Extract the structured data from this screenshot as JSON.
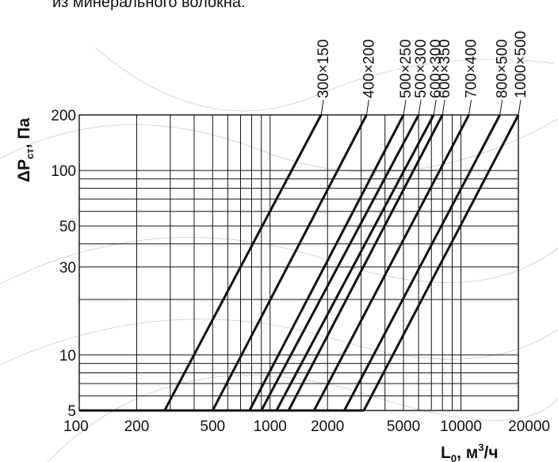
{
  "caption": "из минерального волокна.",
  "chart_data": {
    "type": "line",
    "x_scale": "log",
    "y_scale": "log",
    "xlim": [
      100,
      20000
    ],
    "ylim": [
      5,
      200
    ],
    "grid": true,
    "xlabel": {
      "main": "L",
      "sub": "0",
      "rest": ", м",
      "sup": "3",
      "tail": "/ч"
    },
    "ylabel": {
      "pre": "ΔP",
      "sub": "ст",
      "rest": ", Па"
    },
    "x_ticks": [
      {
        "value": 100,
        "label": "100"
      },
      {
        "value": 200,
        "label": "200"
      },
      {
        "value": 500,
        "label": "500"
      },
      {
        "value": 1000,
        "label": "1000"
      },
      {
        "value": 2000,
        "label": "2000"
      },
      {
        "value": 5000,
        "label": "5000"
      },
      {
        "value": 10000,
        "label": "10000"
      },
      {
        "value": 20000,
        "label": "20000"
      }
    ],
    "y_ticks": [
      {
        "value": 5,
        "label": "5"
      },
      {
        "value": 10,
        "label": "10"
      },
      {
        "value": 30,
        "label": "30"
      },
      {
        "value": 50,
        "label": "50"
      },
      {
        "value": 100,
        "label": "100"
      },
      {
        "value": 200,
        "label": "200"
      }
    ],
    "x_grid": [
      200,
      300,
      400,
      500,
      600,
      700,
      800,
      900,
      1000,
      2000,
      3000,
      4000,
      5000,
      6000,
      7000,
      8000,
      9000,
      10000,
      20000
    ],
    "y_grid": [
      6,
      7,
      8,
      9,
      10,
      20,
      30,
      40,
      50,
      60,
      70,
      80,
      90,
      100,
      200
    ],
    "series": [
      {
        "name": "300×150",
        "points": [
          [
            280,
            5
          ],
          [
            1850,
            200
          ]
        ]
      },
      {
        "name": "400×200",
        "points": [
          [
            500,
            5
          ],
          [
            3200,
            200
          ]
        ]
      },
      {
        "name": "500×250",
        "points": [
          [
            780,
            5
          ],
          [
            5000,
            200
          ]
        ]
      },
      {
        "name": "500×300",
        "points": [
          [
            900,
            5
          ],
          [
            6000,
            200
          ]
        ]
      },
      {
        "name": "600×300",
        "points": [
          [
            1080,
            5
          ],
          [
            7200,
            200
          ]
        ]
      },
      {
        "name": "600×350",
        "points": [
          [
            1250,
            5
          ],
          [
            8000,
            200
          ]
        ]
      },
      {
        "name": "700×400",
        "points": [
          [
            1700,
            5
          ],
          [
            11000,
            200
          ]
        ]
      },
      {
        "name": "800×500",
        "points": [
          [
            2450,
            5
          ],
          [
            16000,
            200
          ]
        ]
      },
      {
        "name": "1000×500",
        "points": [
          [
            3100,
            5
          ],
          [
            20000,
            200
          ]
        ]
      }
    ]
  }
}
